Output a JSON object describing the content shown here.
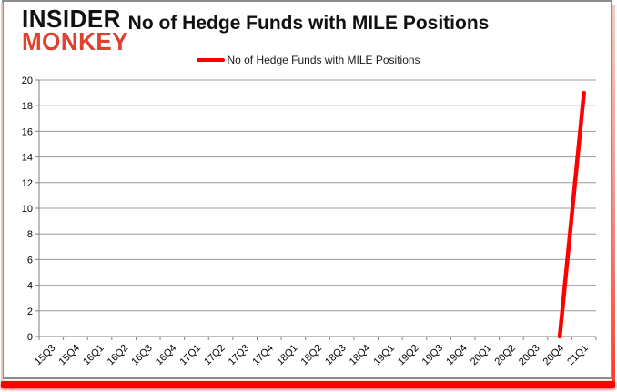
{
  "branding": {
    "line1": "INSIDER",
    "line2": "MONKEY",
    "brand_red": "#e0402e"
  },
  "title": "No of Hedge Funds with MILE Positions",
  "legend": {
    "label": "No of Hedge Funds with MILE Positions",
    "line_color": "#ff0000"
  },
  "chart_data": {
    "type": "line",
    "title": "No of Hedge Funds with MILE Positions",
    "categories": [
      "15Q3",
      "15Q4",
      "16Q1",
      "16Q2",
      "16Q3",
      "16Q4",
      "17Q1",
      "17Q2",
      "17Q3",
      "17Q4",
      "18Q1",
      "18Q2",
      "18Q3",
      "18Q4",
      "19Q1",
      "19Q2",
      "19Q3",
      "19Q4",
      "20Q1",
      "20Q2",
      "20Q3",
      "20Q4",
      "21Q1"
    ],
    "series": [
      {
        "name": "No of Hedge Funds with MILE Positions",
        "color": "#ff0000",
        "values": [
          null,
          null,
          null,
          null,
          null,
          null,
          null,
          null,
          null,
          null,
          null,
          null,
          null,
          null,
          null,
          null,
          null,
          null,
          null,
          null,
          null,
          0,
          19
        ]
      }
    ],
    "xlabel": "",
    "ylabel": "",
    "ylim": [
      0,
      20
    ],
    "ytick_step": 2,
    "grid": true,
    "legend_position": "top",
    "colors": {
      "gridline": "#9c9c9c",
      "axis": "#7f7f7f",
      "tick_text": "#000000"
    }
  }
}
